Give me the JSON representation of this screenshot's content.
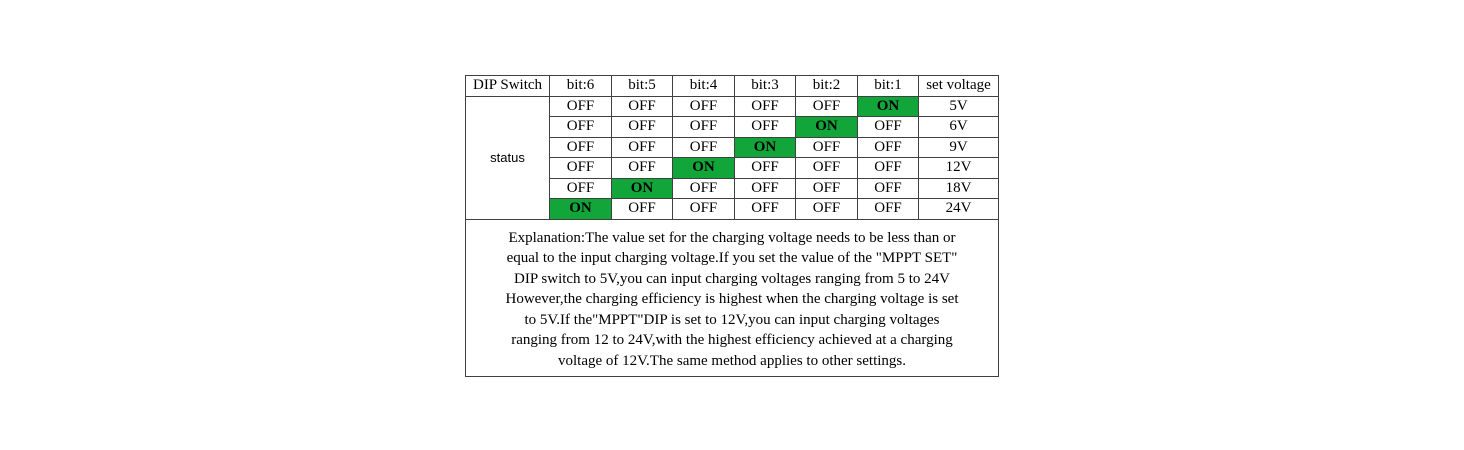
{
  "table": {
    "header": [
      "DIP Switch",
      "bit:6",
      "bit:5",
      "bit:4",
      "bit:3",
      "bit:2",
      "bit:1",
      "set voltage"
    ],
    "status_label": "status",
    "rows": [
      {
        "bits": [
          "OFF",
          "OFF",
          "OFF",
          "OFF",
          "OFF",
          "ON"
        ],
        "voltage": "5V"
      },
      {
        "bits": [
          "OFF",
          "OFF",
          "OFF",
          "OFF",
          "ON",
          "OFF"
        ],
        "voltage": "6V"
      },
      {
        "bits": [
          "OFF",
          "OFF",
          "OFF",
          "ON",
          "OFF",
          "OFF"
        ],
        "voltage": "9V"
      },
      {
        "bits": [
          "OFF",
          "OFF",
          "ON",
          "OFF",
          "OFF",
          "OFF"
        ],
        "voltage": "12V"
      },
      {
        "bits": [
          "OFF",
          "ON",
          "OFF",
          "OFF",
          "OFF",
          "OFF"
        ],
        "voltage": "18V"
      },
      {
        "bits": [
          "ON",
          "OFF",
          "OFF",
          "OFF",
          "OFF",
          "OFF"
        ],
        "voltage": "24V"
      }
    ],
    "on_color": "#12a53a",
    "explanation_lines": [
      "Explanation:The value set for the charging voltage needs to be less than or",
      "equal to the input charging voltage.If you set the value of the \"MPPT SET\"",
      "DIP switch to 5V,you can input charging voltages ranging from 5 to 24V",
      "However,the charging efficiency is highest when the charging voltage is set",
      "to 5V.If the\"MPPT\"DIP is set to 12V,you can input charging voltages",
      "ranging from 12 to 24V,with the highest efficiency achieved at a charging",
      "voltage of 12V.The same method applies to other settings."
    ]
  }
}
